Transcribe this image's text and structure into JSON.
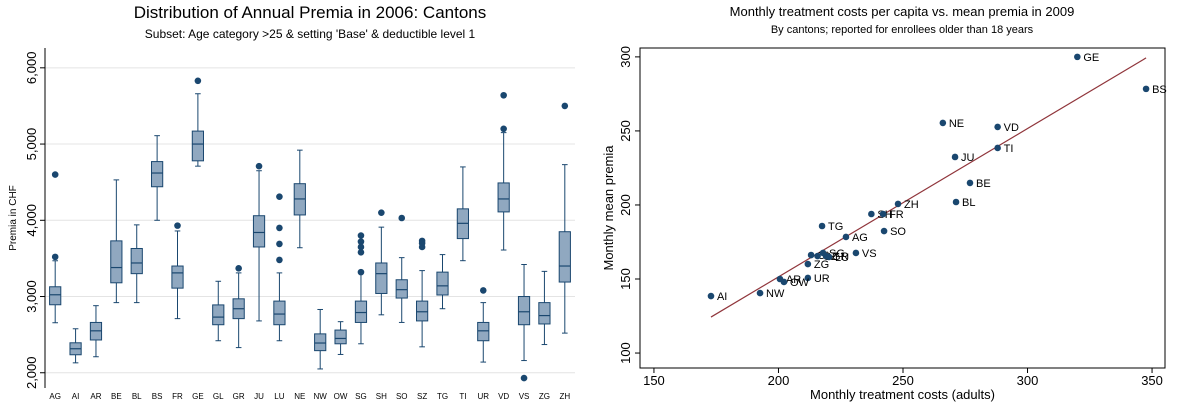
{
  "chart_data": [
    {
      "type": "box",
      "title": "Distribution of Annual Premia in 2006: Cantons",
      "subtitle": "Subset: Age category >25 & setting 'Base' & deductible level 1",
      "ylabel": "Premia in CHF",
      "categories": [
        "AG",
        "AI",
        "AR",
        "BE",
        "BL",
        "BS",
        "FR",
        "GE",
        "GL",
        "GR",
        "JU",
        "LU",
        "NE",
        "NW",
        "OW",
        "SG",
        "SH",
        "SO",
        "SZ",
        "TG",
        "TI",
        "UR",
        "VD",
        "VS",
        "ZG",
        "ZH"
      ],
      "boxes": [
        {
          "low": 2656,
          "q1": 2892,
          "median": 3023,
          "q3": 3128,
          "high": 3469,
          "outliers": [
            3520,
            4600
          ]
        },
        {
          "low": 2130,
          "q1": 2236,
          "median": 2315,
          "q3": 2393,
          "high": 2577
        },
        {
          "low": 2210,
          "q1": 2430,
          "median": 2550,
          "q3": 2660,
          "high": 2880
        },
        {
          "low": 2920,
          "q1": 3180,
          "median": 3380,
          "q3": 3730,
          "high": 4530
        },
        {
          "low": 2920,
          "q1": 3300,
          "median": 3440,
          "q3": 3630,
          "high": 3940
        },
        {
          "low": 4000,
          "q1": 4440,
          "median": 4620,
          "q3": 4770,
          "high": 5110
        },
        {
          "low": 2710,
          "q1": 3110,
          "median": 3310,
          "q3": 3400,
          "high": 3860,
          "outliers": [
            3930
          ]
        },
        {
          "low": 4710,
          "q1": 4780,
          "median": 5000,
          "q3": 5170,
          "high": 5660,
          "outliers": [
            5830
          ]
        },
        {
          "low": 2420,
          "q1": 2630,
          "median": 2730,
          "q3": 2890,
          "high": 3200
        },
        {
          "low": 2330,
          "q1": 2710,
          "median": 2840,
          "q3": 2970,
          "high": 3310,
          "outliers": [
            3370
          ]
        },
        {
          "low": 2680,
          "q1": 3650,
          "median": 3840,
          "q3": 4060,
          "high": 4650,
          "outliers": [
            4710
          ]
        },
        {
          "low": 2420,
          "q1": 2630,
          "median": 2770,
          "q3": 2940,
          "high": 3310,
          "outliers": [
            3480,
            3690,
            3900,
            4310
          ]
        },
        {
          "low": 3640,
          "q1": 4070,
          "median": 4280,
          "q3": 4480,
          "high": 4920
        },
        {
          "low": 2050,
          "q1": 2290,
          "median": 2390,
          "q3": 2510,
          "high": 2830
        },
        {
          "low": 2240,
          "q1": 2380,
          "median": 2450,
          "q3": 2560,
          "high": 2670
        },
        {
          "low": 2380,
          "q1": 2660,
          "median": 2790,
          "q3": 2940,
          "high": 3310,
          "outliers": [
            3320,
            3580,
            3650,
            3720,
            3800
          ]
        },
        {
          "low": 2760,
          "q1": 3040,
          "median": 3300,
          "q3": 3440,
          "high": 3910,
          "outliers": [
            4100
          ]
        },
        {
          "low": 2660,
          "q1": 2980,
          "median": 3090,
          "q3": 3220,
          "high": 3510,
          "outliers": [
            4030
          ]
        },
        {
          "low": 2340,
          "q1": 2680,
          "median": 2800,
          "q3": 2940,
          "high": 3340,
          "outliers": [
            3650,
            3700,
            3730
          ]
        },
        {
          "low": 2840,
          "q1": 3020,
          "median": 3140,
          "q3": 3320,
          "high": 3550
        },
        {
          "low": 3470,
          "q1": 3760,
          "median": 3960,
          "q3": 4150,
          "high": 4700
        },
        {
          "low": 2140,
          "q1": 2420,
          "median": 2550,
          "q3": 2660,
          "high": 2920,
          "outliers": [
            3080
          ]
        },
        {
          "low": 3610,
          "q1": 4110,
          "median": 4280,
          "q3": 4490,
          "high": 5150,
          "outliers": [
            5200,
            5640
          ]
        },
        {
          "low": 2160,
          "q1": 2630,
          "median": 2800,
          "q3": 3000,
          "high": 3420,
          "outliers": [
            1930
          ]
        },
        {
          "low": 2370,
          "q1": 2640,
          "median": 2750,
          "q3": 2920,
          "high": 3330
        },
        {
          "low": 2520,
          "q1": 3190,
          "median": 3400,
          "q3": 3850,
          "high": 4730,
          "outliers": [
            5500
          ]
        }
      ],
      "color": "#90a8c0",
      "edge_color": "#1a476f",
      "ylim": [
        1800,
        6260
      ],
      "yticks": [
        {
          "value": 2000,
          "label": "2,000"
        },
        {
          "value": 3000,
          "label": "3,000"
        },
        {
          "value": 4000,
          "label": "4,000"
        },
        {
          "value": 5000,
          "label": "5,000"
        },
        {
          "value": 6000,
          "label": "6,000"
        }
      ],
      "grid": true
    },
    {
      "type": "scatter",
      "title": "Monthly treatment costs per capita vs. mean premia in 2009",
      "subtitle": "By cantons;  reported for enrollees older than 18 years",
      "xlabel": "Monthly treatment costs (adults)",
      "ylabel": "Monthly mean premia",
      "labels": [
        "GE",
        "BS",
        "NE",
        "VD",
        "TI",
        "JU",
        "BE",
        "BL",
        "ZH",
        "SH",
        "FR",
        "SO",
        "TG",
        "AG",
        "VS",
        "GL",
        "SZ",
        "SG",
        "GR",
        "LU",
        "ZG",
        "UR",
        "AR",
        "OW",
        "NW",
        "AI"
      ],
      "x": [
        320,
        347.6,
        266,
        288,
        288,
        270.9,
        276.9,
        271.3,
        248,
        237.3,
        242,
        242.4,
        217.5,
        227.1,
        231.1,
        213.1,
        215.7,
        217.9,
        219.1,
        220.3,
        211.8,
        211.8,
        200.6,
        202.2,
        192.6,
        172.9
      ],
      "y": [
        300,
        278.4,
        255.4,
        252.7,
        238.5,
        232.4,
        214.9,
        202,
        200.7,
        193.9,
        193.9,
        182.4,
        185.8,
        178.4,
        167.6,
        166.2,
        165.5,
        167.6,
        165.5,
        164.9,
        160.1,
        150.7,
        150,
        148,
        140.5,
        138.5
      ],
      "color": "#1a476f",
      "trend_line": {
        "x": [
          172.9,
          347.6
        ],
        "y": [
          124.3,
          299.3
        ],
        "color": "#90353b"
      },
      "xlim": [
        144.4,
        355.2
      ],
      "ylim": [
        89.9,
        306
      ],
      "xticks": [
        150,
        200,
        250,
        300,
        350
      ],
      "yticks": [
        100,
        150,
        200,
        250,
        300
      ]
    }
  ]
}
